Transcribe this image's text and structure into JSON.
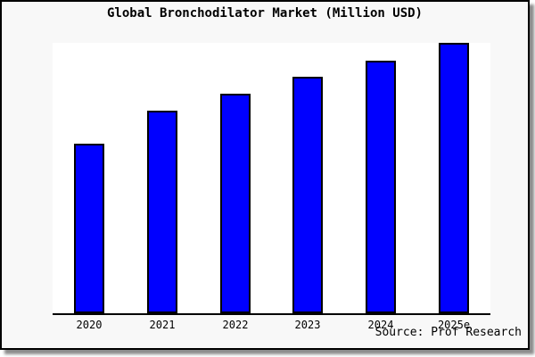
{
  "frame": {
    "background": "#f8f8f8",
    "border_color": "#000000",
    "shadow_color": "#8c8c8c"
  },
  "chart": {
    "title": "Global Bronchodilator Market (Million USD)",
    "source_label": "Source: Prof Research",
    "plot_background": "#ffffff",
    "axis_color": "#000000",
    "bar_fill": "#0000ff",
    "bar_border": "#000000"
  },
  "chart_data": {
    "type": "bar",
    "title": "Global Bronchodilator Market (Million USD)",
    "categories": [
      "2020",
      "2021",
      "2022",
      "2023",
      "2024",
      "2025e"
    ],
    "values": [
      62.6,
      74.8,
      81.1,
      87.4,
      93.4,
      100
    ],
    "values_note": "No y-axis ticks or data labels are shown in the image; values are relative bar heights scaled so 2025e = 100.",
    "xlabel": "",
    "ylabel": "",
    "ylim": [
      0,
      100
    ],
    "grid": false,
    "legend": false,
    "annotations": [
      "Source: Prof Research"
    ]
  }
}
